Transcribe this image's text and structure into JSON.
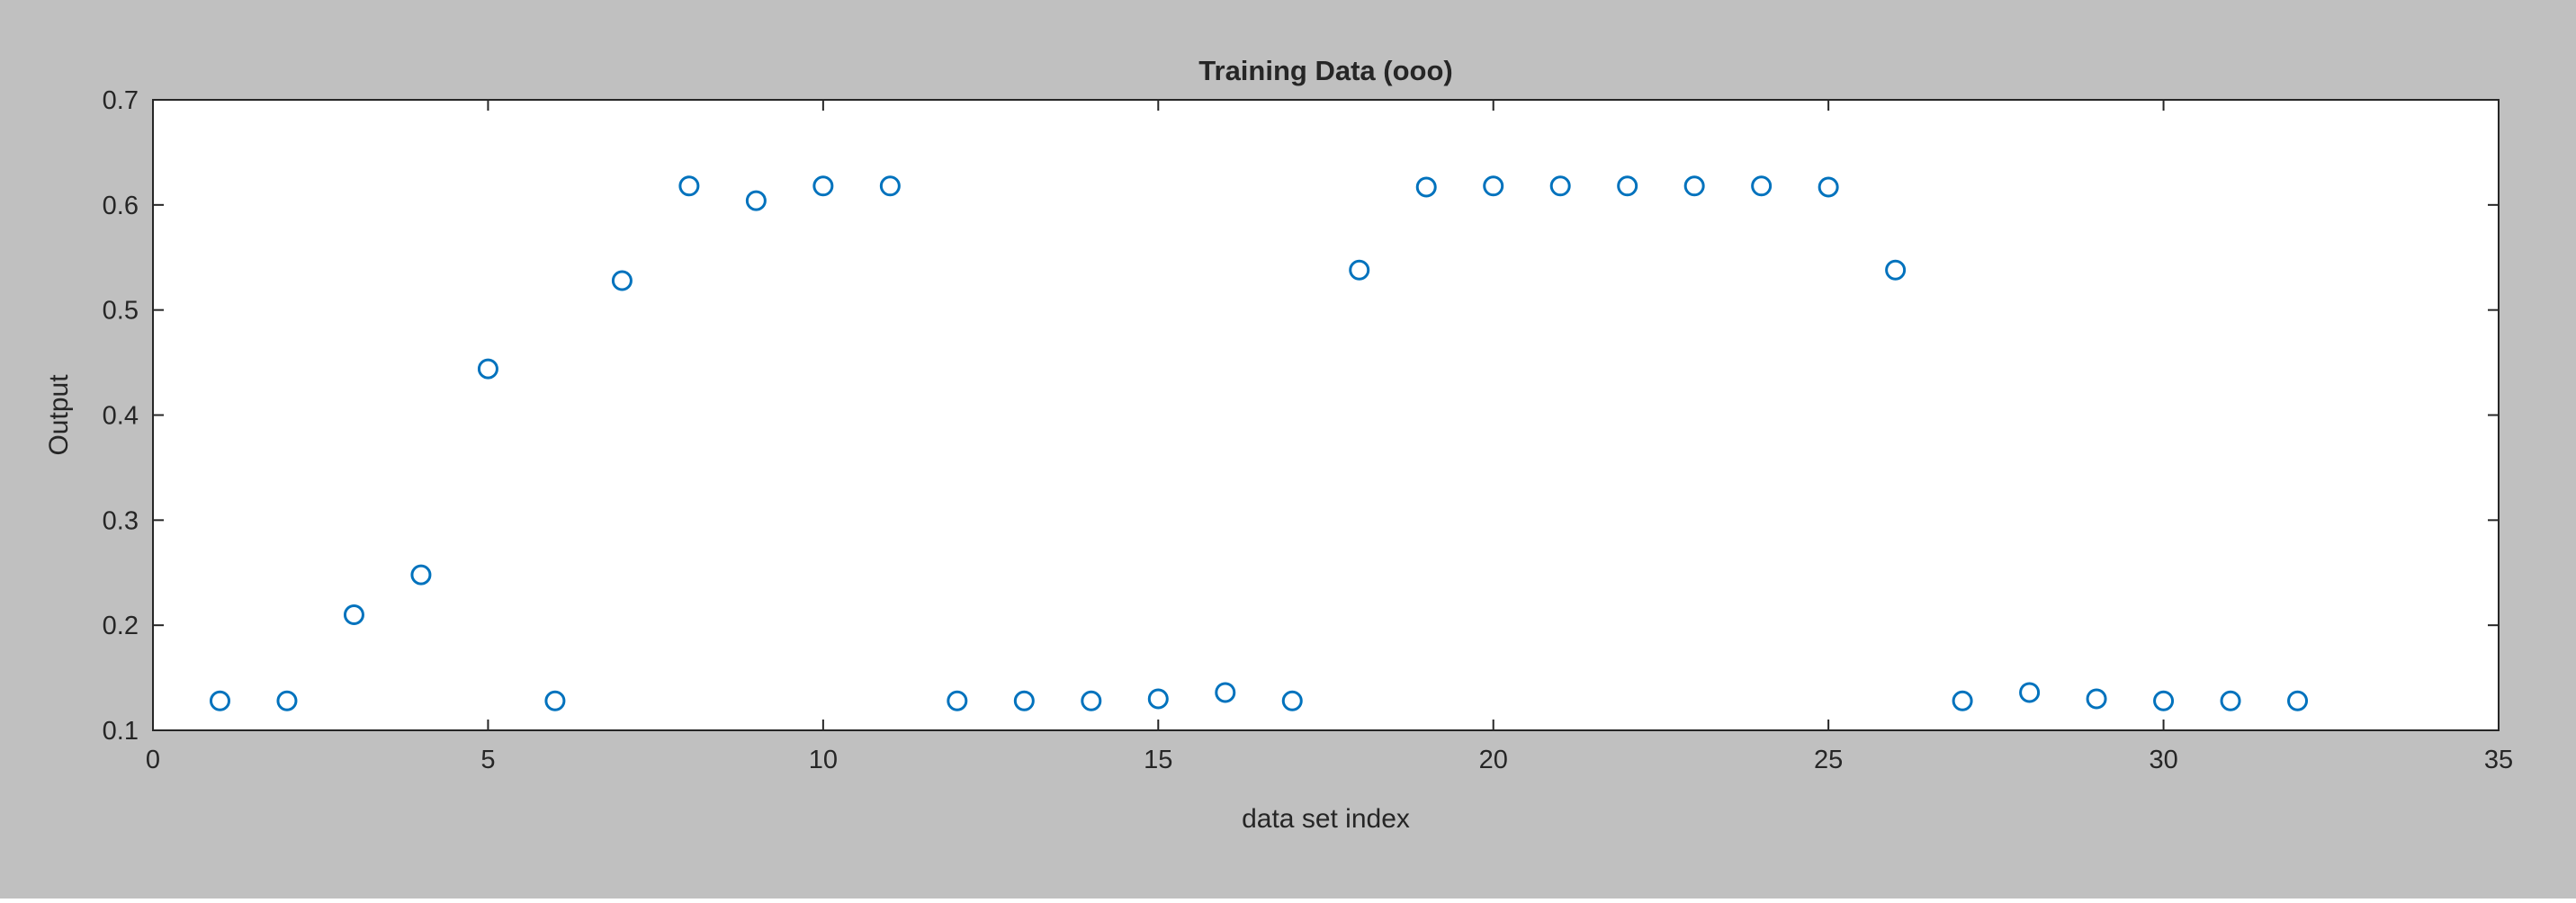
{
  "colors": {
    "figure_background": "#c0c0c0",
    "axes_background": "#ffffff",
    "axis_line": "#262626",
    "marker": "#0072bd"
  },
  "chart_data": {
    "type": "scatter",
    "title": "Training Data (ooo)",
    "xlabel": "data set index",
    "ylabel": "Output",
    "xlim": [
      0,
      35
    ],
    "ylim": [
      0.1,
      0.7
    ],
    "xticks": [
      0,
      5,
      10,
      15,
      20,
      25,
      30,
      35
    ],
    "yticks": [
      0.1,
      0.2,
      0.3,
      0.4,
      0.5,
      0.6,
      0.7
    ],
    "xtick_labels": [
      "0",
      "5",
      "10",
      "15",
      "20",
      "25",
      "30",
      "35"
    ],
    "ytick_labels": [
      "0.1",
      "0.2",
      "0.3",
      "0.4",
      "0.5",
      "0.6",
      "0.7"
    ],
    "marker": "circle-open",
    "grid": false,
    "legend": "none",
    "x": [
      1,
      2,
      3,
      4,
      5,
      6,
      7,
      8,
      9,
      10,
      11,
      12,
      13,
      14,
      15,
      16,
      17,
      18,
      19,
      20,
      21,
      22,
      23,
      24,
      25,
      26,
      27,
      28,
      29,
      30,
      31,
      32
    ],
    "y": [
      0.128,
      0.128,
      0.21,
      0.248,
      0.444,
      0.128,
      0.528,
      0.618,
      0.604,
      0.618,
      0.618,
      0.128,
      0.128,
      0.128,
      0.13,
      0.136,
      0.128,
      0.538,
      0.617,
      0.618,
      0.618,
      0.618,
      0.618,
      0.618,
      0.617,
      0.538,
      0.128,
      0.136,
      0.13,
      0.128,
      0.128,
      0.128
    ]
  }
}
